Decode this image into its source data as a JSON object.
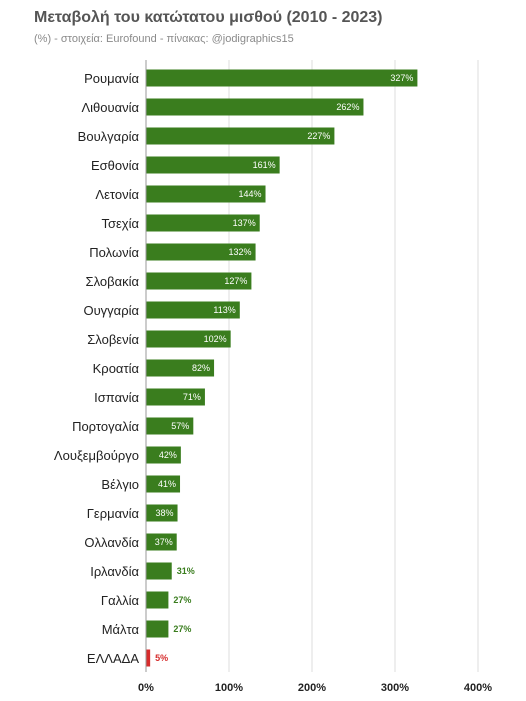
{
  "title": "Μεταβολή του κατώτατου μισθού (2010 - 2023)",
  "subtitle": "(%) - στοιχεία: Eurofound - πίνακας: @jodigraphics15",
  "colors": {
    "bar": "#3a7d1e",
    "highlight": "#d62c2c",
    "grid": "#dddddd",
    "title": "#555555",
    "subtitle": "#8a8a8a"
  },
  "chart_data": {
    "type": "bar",
    "orientation": "horizontal",
    "title": "Μεταβολή του κατώτατου μισθού (2010 - 2023)",
    "subtitle": "(%) - στοιχεία: Eurofound - πίνακας: @jodigraphics15",
    "categories": [
      "Ρουμανία",
      "Λιθουανία",
      "Βουλγαρία",
      "Εσθονία",
      "Λετονία",
      "Τσεχία",
      "Πολωνία",
      "Σλοβακία",
      "Ουγγαρία",
      "Σλοβενία",
      "Κροατία",
      "Ισπανία",
      "Πορτογαλία",
      "Λουξεμβούργο",
      "Βέλγιο",
      "Γερμανία",
      "Ολλανδία",
      "Ιρλανδία",
      "Γαλλία",
      "Μάλτα",
      "ΕΛΛΑΔΑ"
    ],
    "values": [
      327,
      262,
      227,
      161,
      144,
      137,
      132,
      127,
      113,
      102,
      82,
      71,
      57,
      42,
      41,
      38,
      37,
      31,
      27,
      27,
      5
    ],
    "value_labels": [
      "327%",
      "262%",
      "227%",
      "161%",
      "144%",
      "137%",
      "132%",
      "127%",
      "113%",
      "102%",
      "82%",
      "71%",
      "57%",
      "42%",
      "41%",
      "38%",
      "37%",
      "31%",
      "27%",
      "27%",
      "5%"
    ],
    "highlight_category": "ΕΛΛΑΔΑ",
    "xlim": [
      0,
      400
    ],
    "xticks": [
      0,
      100,
      200,
      300,
      400
    ],
    "xtick_labels": [
      "0%",
      "100%",
      "200%",
      "300%",
      "400%"
    ],
    "xlabel": "",
    "ylabel": "",
    "grid": true,
    "legend": "none"
  }
}
